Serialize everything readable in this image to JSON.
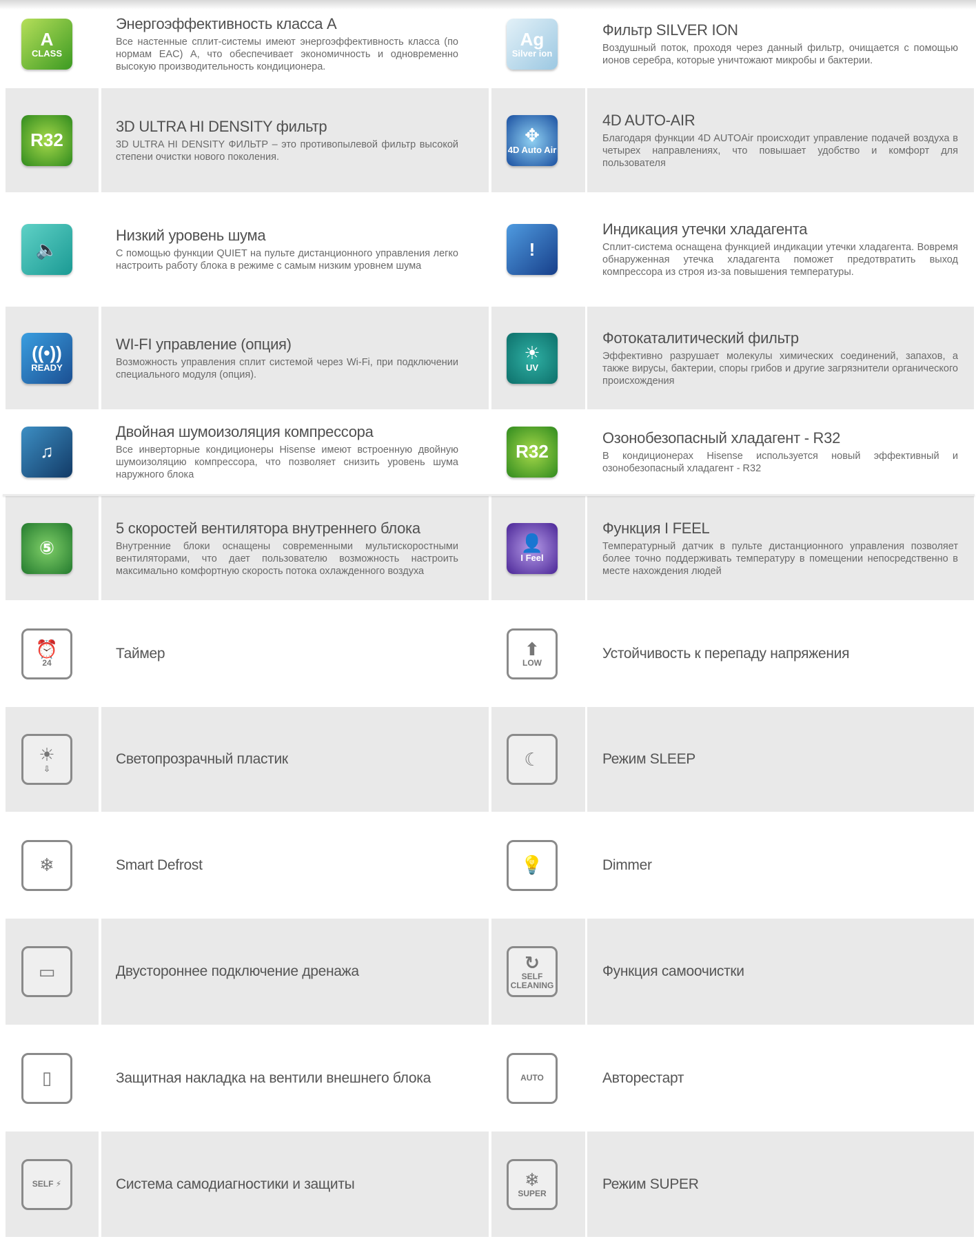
{
  "colors": {
    "row_gray": "#e9e9e9",
    "title": "#505050",
    "text": "#6a6a6a",
    "outline_icon": "#8a8a8a"
  },
  "rows": [
    {
      "gray": false,
      "items": [
        {
          "title": "Энергоэффективность класса А",
          "desc": "Все настенные сплит-системы имеют энергоэффективность класса (по нормам EAC) A, что обеспечивает экономичность и одновременно высокую производительность кондиционера.",
          "icon": {
            "name": "energy-class-a-icon",
            "style": "color",
            "bg": "linear-gradient(135deg,#b6df5a,#3c9a22)",
            "glyph": "A",
            "label": "CLASS"
          }
        },
        {
          "title": "Фильтр SILVER ION",
          "desc": "Воздушный поток, проходя через данный фильтр, очищается с помощью ионов серебра, которые уничтожают микробы и бактерии.",
          "icon": {
            "name": "silver-ion-filter-icon",
            "style": "color",
            "bg": "linear-gradient(135deg,#e3f1f8,#9cc8e2)",
            "glyph": "Ag",
            "label": "Silver ion"
          }
        }
      ]
    },
    {
      "gray": true,
      "items": [
        {
          "title": "3D ULTRA HI DENSITY фильтр",
          "desc": "3D ULTRA HI DENSITY ФИЛЬТР – это противопылевой фильтр высокой степени очистки нового поколения.",
          "icon": {
            "name": "r32-filter-icon",
            "style": "color",
            "bg": "radial-gradient(circle,#a6d94a,#2f8a1e)",
            "glyph": "R32",
            "label": ""
          }
        },
        {
          "title": "4D AUTO-AIR",
          "desc": "Благодаря функции 4D AUTOAir происходит управление подачей воздуха в четырех направлениях, что повышает удобство и комфорт для пользователя",
          "icon": {
            "name": "auto-air-4d-icon",
            "style": "color",
            "bg": "radial-gradient(circle,#8fd0f2,#1a4fa0)",
            "glyph": "✥",
            "label": "4D Auto Air"
          }
        }
      ]
    },
    {
      "gray": false,
      "items": [
        {
          "title": "Низкий уровень шума",
          "desc": "С помощью функции QUIET на пульте дистанционного управления легко настроить работу блока в режиме с самым низким уровнем шума",
          "icon": {
            "name": "quiet-speaker-icon",
            "style": "color",
            "bg": "linear-gradient(135deg,#5fd1c6,#1b9a94)",
            "glyph": "🔈",
            "label": ""
          }
        },
        {
          "title": "Индикация утечки хладагента",
          "desc": "Сплит-система оснащена функцией индикации утечки хладагента. Вовремя обнаруженная утечка хладагента поможет предотвратить выход компрессора из строя из-за повышения температуры.",
          "icon": {
            "name": "refrigerant-leak-icon",
            "style": "color",
            "bg": "linear-gradient(135deg,#4f9be0,#173f8a)",
            "glyph": "!",
            "label": ""
          }
        }
      ]
    },
    {
      "gray": true,
      "items": [
        {
          "title": "WI-FI управление (опция)",
          "desc": "Возможность управления сплит системой через Wi-Fi, при подключении специального модуля (опция).",
          "icon": {
            "name": "wifi-ready-icon",
            "style": "color",
            "bg": "linear-gradient(135deg,#3a9ee0,#1b4f92)",
            "glyph": "((•))",
            "label": "READY"
          }
        },
        {
          "title": "Фотокаталитический фильтр",
          "desc": "Эффективно разрушает молекулы химических соединений, запахов, а также вирусы, бактерии, споры грибов и другие загрязнители органического происхождения",
          "icon": {
            "name": "uv-photocatalytic-icon",
            "style": "color",
            "bg": "radial-gradient(circle,#2fb0a4,#0d6f6a)",
            "glyph": "☀",
            "label": "UV"
          }
        }
      ]
    },
    {
      "gray": false,
      "items": [
        {
          "title": "Двойная шумоизоляция компрессора",
          "desc": "Все инверторные кондиционеры Hisense имеют встроенную двойную шумоизоляцию компрессора, что позволяет снизить уровень шума наружного блока",
          "icon": {
            "name": "compressor-insulation-icon",
            "style": "color",
            "bg": "linear-gradient(135deg,#3d8fc4,#123a66)",
            "glyph": "♫",
            "label": ""
          }
        },
        {
          "title": "Озонобезопасный хладагент - R32",
          "desc": "В кондиционерах Hisense используется новый эффективный и озонобезопасный хладагент - R32",
          "icon": {
            "name": "r32-refrigerant-icon",
            "style": "color",
            "bg": "radial-gradient(circle,#a6d94a,#2f8a1e)",
            "glyph": "R32",
            "label": ""
          }
        }
      ]
    },
    {
      "gray": true,
      "items": [
        {
          "title": "5 скоростей вентилятора внутреннего блока",
          "desc": "Внутренние блоки оснащены современными мультискоростными вентиляторами, что дает пользователю возможность настроить максимально комфортную скорость потока охлажденного воздуха",
          "icon": {
            "name": "fan-5-speed-icon",
            "style": "color",
            "bg": "radial-gradient(circle,#7fcf68,#237a2e)",
            "glyph": "⑤",
            "label": ""
          }
        },
        {
          "title": "Функция I FEEL",
          "desc": "Температурный датчик в пульте дистанционного управления позволяет более точно поддерживать температуру в помещении непосредственно в месте нахождения людей",
          "icon": {
            "name": "i-feel-icon",
            "style": "color",
            "bg": "radial-gradient(circle,#b59be8,#4a2596)",
            "glyph": "👤",
            "label": "I Feel"
          }
        }
      ]
    },
    {
      "gray": false,
      "items": [
        {
          "title": "Таймер",
          "icon": {
            "name": "alarm-clock-timer-icon",
            "style": "outline",
            "glyph": "⏰",
            "label": "24"
          }
        },
        {
          "title": "Устойчивость к перепаду напряжения",
          "icon": {
            "name": "low-voltage-icon",
            "style": "outline",
            "glyph": "⬆",
            "label": "LOW"
          }
        }
      ]
    },
    {
      "gray": true,
      "items": [
        {
          "title": "Светопрозрачный пластик",
          "icon": {
            "name": "translucent-plastic-icon",
            "style": "outline",
            "glyph": "☀",
            "label": "⇩"
          }
        },
        {
          "title": "Режим SLEEP",
          "icon": {
            "name": "moon-sleep-icon",
            "style": "outline",
            "glyph": "☾",
            "label": ""
          }
        }
      ]
    },
    {
      "gray": false,
      "items": [
        {
          "title": "Smart Defrost",
          "icon": {
            "name": "snowflake-defrost-icon",
            "style": "outline",
            "glyph": "❄",
            "label": ""
          }
        },
        {
          "title": "Dimmer",
          "icon": {
            "name": "light-bulb-icon",
            "style": "outline",
            "glyph": "💡",
            "label": ""
          }
        }
      ]
    },
    {
      "gray": true,
      "items": [
        {
          "title": "Двустороннее подключение дренажа",
          "icon": {
            "name": "drainage-icon",
            "style": "outline",
            "glyph": "▭",
            "label": ""
          }
        },
        {
          "title": "Функция самоочистки",
          "icon": {
            "name": "self-cleaning-icon",
            "style": "outline",
            "glyph": "↻",
            "label": "SELF CLEANING"
          }
        }
      ]
    },
    {
      "gray": false,
      "items": [
        {
          "title": "Защитная накладка на вентили внешнего блока",
          "icon": {
            "name": "valve-cover-icon",
            "style": "outline",
            "glyph": "▯",
            "label": ""
          }
        },
        {
          "title": "Авторестарт",
          "icon": {
            "name": "auto-restart-icon",
            "style": "outline",
            "glyph": "",
            "label": "AUTO"
          }
        }
      ]
    },
    {
      "gray": true,
      "items": [
        {
          "title": "Система самодиагностики и защиты",
          "icon": {
            "name": "self-diagnosis-icon",
            "style": "outline",
            "glyph": "",
            "label": "SELF ⚡"
          }
        },
        {
          "title": "Режим SUPER",
          "icon": {
            "name": "super-mode-icon",
            "style": "outline",
            "glyph": "❄",
            "label": "SUPER"
          }
        }
      ]
    }
  ]
}
